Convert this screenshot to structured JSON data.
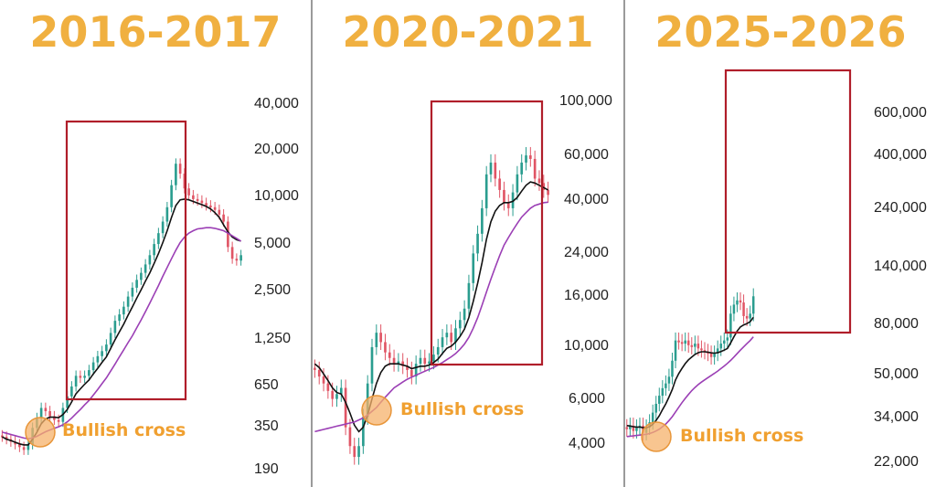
{
  "colors": {
    "title": "#f0b040",
    "up": "#2a9d8f",
    "down": "#e05565",
    "ma_fast": "#111111",
    "ma_slow": "#9b3fb5",
    "box": "#b01e2a",
    "cross_circle": "#f6b26b",
    "cross_label": "#f0a030",
    "divider": "#9a9a9a"
  },
  "chart_data": [
    {
      "type": "candlestick",
      "title": "2016-2017",
      "y_scale": "log",
      "ylim": [
        150,
        50000
      ],
      "ticks": [
        "40,000",
        "20,000",
        "10,000",
        "5,000",
        "2,500",
        "1,250",
        "650",
        "350",
        "190"
      ],
      "annotation": "Bullish cross",
      "series": [
        {
          "name": "",
          "kind": "candles",
          "values": [
            290,
            280,
            270,
            260,
            250,
            240,
            260,
            330,
            380,
            440,
            420,
            390,
            370,
            360,
            440,
            520,
            600,
            700,
            680,
            700,
            760,
            850,
            930,
            1000,
            1100,
            1300,
            1550,
            1700,
            1900,
            2200,
            2500,
            2800,
            3100,
            3500,
            4000,
            4700,
            5500,
            6500,
            8000,
            11000,
            15000,
            13000,
            10500,
            9500,
            9000,
            8800,
            8500,
            8200,
            8000,
            7700,
            7200,
            6500,
            4500,
            3800,
            3700,
            4000
          ]
        },
        {
          "name": "",
          "kind": "ma-fast",
          "values": [
            290,
            280,
            275,
            268,
            262,
            258,
            258,
            280,
            310,
            350,
            375,
            385,
            385,
            382,
            400,
            430,
            480,
            540,
            580,
            620,
            660,
            720,
            780,
            850,
            920,
            1040,
            1180,
            1320,
            1480,
            1680,
            1900,
            2150,
            2430,
            2750,
            3100,
            3550,
            4100,
            4800,
            5700,
            6900,
            8200,
            8900,
            9000,
            8900,
            8700,
            8500,
            8300,
            8100,
            7800,
            7400,
            6900,
            6200,
            5600,
            5200,
            5000,
            4900
          ]
        },
        {
          "name": "",
          "kind": "ma-slow",
          "values": [
            310,
            305,
            300,
            295,
            290,
            285,
            282,
            285,
            292,
            302,
            312,
            320,
            328,
            335,
            345,
            360,
            380,
            405,
            430,
            460,
            490,
            530,
            575,
            625,
            680,
            750,
            830,
            920,
            1020,
            1130,
            1250,
            1400,
            1570,
            1770,
            2000,
            2270,
            2580,
            2950,
            3350,
            3800,
            4300,
            4800,
            5200,
            5500,
            5700,
            5850,
            5900,
            5950,
            5950,
            5900,
            5800,
            5700,
            5500,
            5300,
            5100,
            4900
          ]
        }
      ]
    },
    {
      "type": "candlestick",
      "title": "2020-2021",
      "y_scale": "log",
      "ylim": [
        3000,
        120000
      ],
      "ticks": [
        "100,000",
        "60,000",
        "40,000",
        "24,000",
        "16,000",
        "10,000",
        "6,000",
        "4,000"
      ],
      "annotation": "Bullish cross",
      "series": [
        {
          "name": "",
          "kind": "candles",
          "values": [
            8500,
            8000,
            7500,
            7000,
            6500,
            6800,
            7200,
            5000,
            4200,
            3800,
            4200,
            5500,
            7500,
            10500,
            12000,
            11000,
            10000,
            9500,
            9000,
            9200,
            8800,
            8500,
            8000,
            9000,
            9500,
            9000,
            9200,
            9800,
            10500,
            11500,
            12000,
            11000,
            12500,
            13500,
            15000,
            19000,
            25000,
            30000,
            38000,
            52000,
            58000,
            50000,
            45000,
            40000,
            38000,
            44000,
            52000,
            58000,
            62000,
            60000,
            50000,
            48000,
            45000,
            43000
          ]
        },
        {
          "name": "",
          "kind": "ma-fast",
          "values": [
            9000,
            8700,
            8200,
            7700,
            7200,
            6900,
            6800,
            6300,
            5700,
            5100,
            4800,
            5000,
            5600,
            6500,
            7500,
            8300,
            8800,
            9000,
            9000,
            9000,
            8900,
            8800,
            8600,
            8700,
            8800,
            8800,
            8900,
            9100,
            9400,
            9900,
            10400,
            10600,
            11000,
            11600,
            12400,
            13800,
            16000,
            19000,
            23000,
            28500,
            33500,
            37000,
            39000,
            40000,
            40000,
            40500,
            42000,
            44500,
            47000,
            48500,
            48000,
            47000,
            46000,
            45000
          ]
        },
        {
          "name": "",
          "kind": "ma-slow",
          "values": [
            4800,
            4850,
            4900,
            4950,
            5000,
            5050,
            5100,
            5150,
            5200,
            5250,
            5350,
            5450,
            5600,
            5800,
            6000,
            6300,
            6600,
            6900,
            7200,
            7400,
            7600,
            7800,
            7950,
            8100,
            8250,
            8400,
            8550,
            8700,
            8900,
            9100,
            9350,
            9600,
            9900,
            10300,
            10800,
            11500,
            12500,
            13800,
            15500,
            17500,
            19700,
            22000,
            24500,
            27000,
            29000,
            31000,
            33000,
            35000,
            36500,
            38000,
            39000,
            39500,
            40000,
            40200
          ]
        }
      ]
    },
    {
      "type": "candlestick",
      "title": "2025-2026",
      "y_scale": "log",
      "ylim": [
        20000,
        800000
      ],
      "ticks": [
        "600,000",
        "400,000",
        "240,000",
        "140,000",
        "80,000",
        "50,000",
        "34,000",
        "22,000"
      ],
      "annotation": "Bullish cross",
      "series": [
        {
          "name": "",
          "kind": "candles",
          "values": [
            29000,
            30000,
            28500,
            29500,
            30000,
            28000,
            29500,
            31000,
            34000,
            37000,
            40000,
            43000,
            45000,
            48000,
            56000,
            68000,
            67000,
            66000,
            68000,
            65000,
            64000,
            66000,
            63000,
            62000,
            61000,
            60000,
            58000,
            60000,
            63000,
            66000,
            68000,
            70000,
            88000,
            96000,
            100000,
            98000,
            86000,
            84000,
            88000,
            104000
          ]
        },
        {
          "name": "",
          "kind": "ma-fast",
          "values": [
            30000,
            29900,
            29700,
            29600,
            29600,
            29400,
            29400,
            29700,
            30400,
            31500,
            33000,
            35000,
            37000,
            39500,
            42500,
            46500,
            49500,
            52000,
            54500,
            56500,
            58000,
            59500,
            60500,
            61000,
            61000,
            60800,
            60400,
            60200,
            60500,
            61200,
            62000,
            63000,
            66500,
            70500,
            74500,
            77500,
            79000,
            80000,
            81500,
            85000
          ]
        },
        {
          "name": "",
          "kind": "ma-slow",
          "values": [
            27000,
            27100,
            27200,
            27300,
            27400,
            27500,
            27600,
            27800,
            28100,
            28500,
            29000,
            29700,
            30500,
            31500,
            32700,
            34200,
            35800,
            37400,
            39000,
            40500,
            42000,
            43300,
            44500,
            45600,
            46600,
            47600,
            48600,
            49600,
            50700,
            51900,
            53200,
            54600,
            56200,
            58000,
            60000,
            62000,
            64000,
            66000,
            68000,
            70500
          ]
        }
      ]
    }
  ]
}
